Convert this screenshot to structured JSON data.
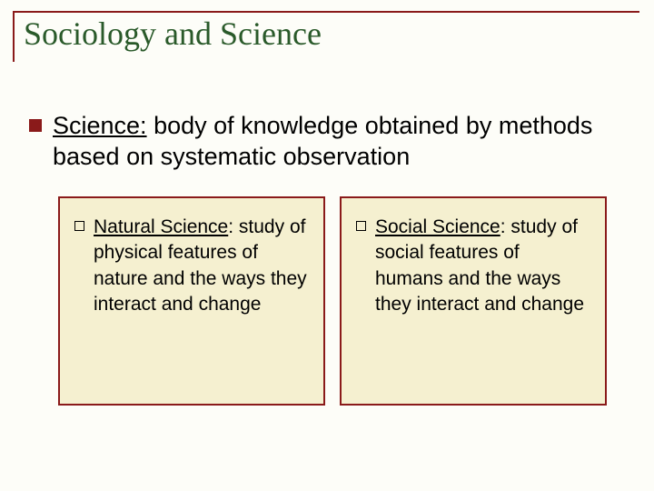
{
  "colors": {
    "background": "#fdfdf8",
    "accent_dark_red": "#8a1a1a",
    "title_green": "#2a5a2a",
    "box_fill": "#f5f0d0",
    "box_border": "#8a1a1a",
    "text": "#000000"
  },
  "title": "Sociology and Science",
  "main_point": {
    "heading": "Science:",
    "body": " body of knowledge obtained by methods based on systematic observation"
  },
  "boxes": [
    {
      "heading": "Natural Science",
      "body": ": study of physical features of nature and the ways they interact and change"
    },
    {
      "heading": "Social Science",
      "body": ": study of social features of humans and the ways they interact and change"
    }
  ],
  "typography": {
    "title_font": "Times New Roman, serif",
    "title_size_pt": 36,
    "body_font": "Arial, sans-serif",
    "main_size_pt": 27,
    "sub_size_pt": 21
  }
}
